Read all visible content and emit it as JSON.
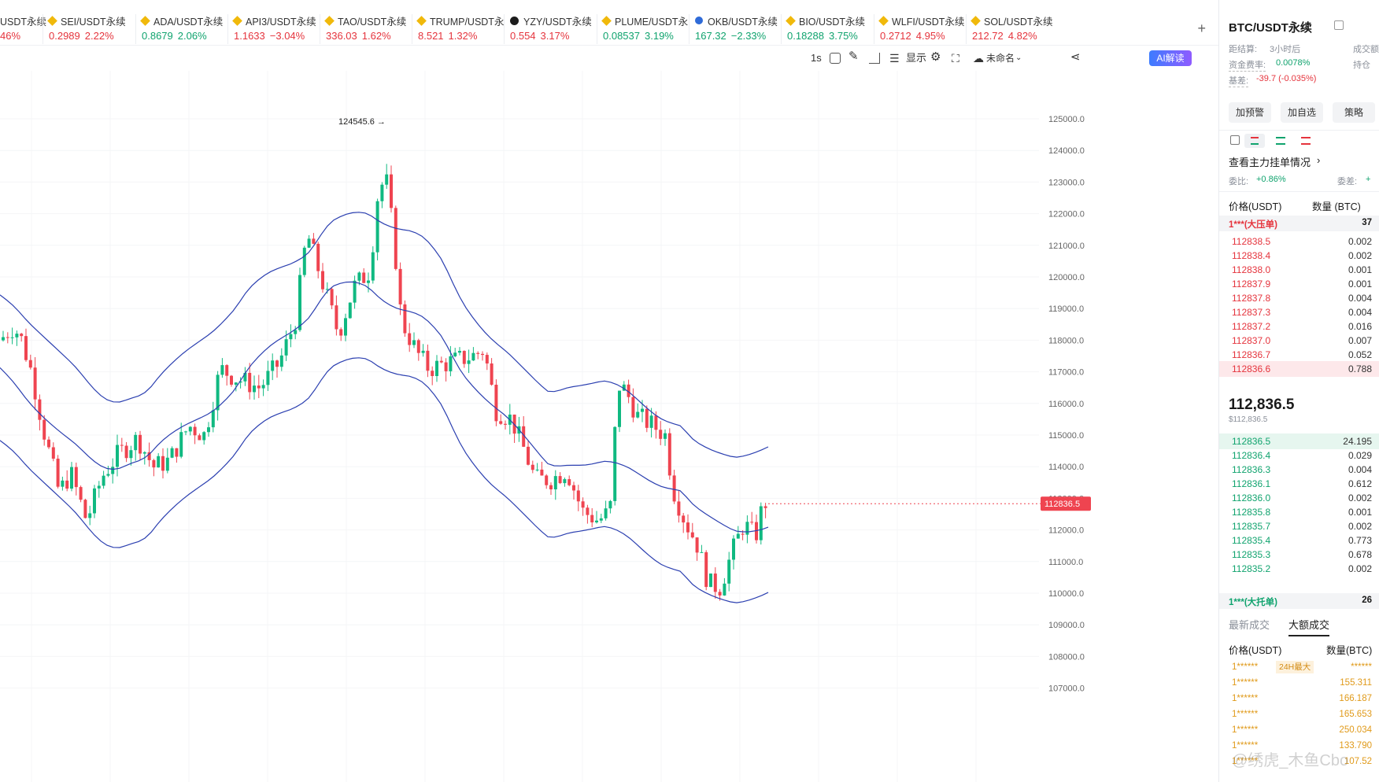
{
  "ticker": [
    {
      "name": "USDT永续",
      "price": "",
      "change": "46%",
      "dir": "down",
      "icon": "none"
    },
    {
      "name": "SEI/USDT永续",
      "price": "0.2989",
      "change": "2.22%",
      "dir": "down",
      "icon": "binance"
    },
    {
      "name": "ADA/USDT永续",
      "price": "0.8679",
      "change": "2.06%",
      "dir": "up",
      "icon": "binance"
    },
    {
      "name": "API3/USDT永续",
      "price": "1.1633",
      "change": "−3.04%",
      "dir": "down",
      "icon": "binance"
    },
    {
      "name": "TAO/USDT永续",
      "price": "336.03",
      "change": "1.62%",
      "dir": "down",
      "icon": "binance"
    },
    {
      "name": "TRUMP/USDT永",
      "price": "8.521",
      "change": "1.32%",
      "dir": "down",
      "icon": "binance"
    },
    {
      "name": "YZY/USDT永续",
      "price": "0.554",
      "change": "3.17%",
      "dir": "down",
      "icon": "dark"
    },
    {
      "name": "PLUME/USDT永",
      "price": "0.08537",
      "change": "3.19%",
      "dir": "up",
      "icon": "binance"
    },
    {
      "name": "OKB/USDT永续",
      "price": "167.32",
      "change": "−2.33%",
      "dir": "up",
      "icon": "blue"
    },
    {
      "name": "BIO/USDT永续",
      "price": "0.18288",
      "change": "3.75%",
      "dir": "up",
      "icon": "binance"
    },
    {
      "name": "WLFI/USDT永续",
      "price": "0.2712",
      "change": "4.95%",
      "dir": "down",
      "icon": "binance"
    },
    {
      "name": "SOL/USDT永续",
      "price": "212.72",
      "change": "4.82%",
      "dir": "down",
      "icon": "binance"
    }
  ],
  "toolbar": {
    "interval": "1s",
    "display_label": "显示",
    "layout_name": "未命名",
    "ai_label": "AI解读"
  },
  "chart": {
    "peak_label": "124545.6",
    "current_price_label": "112836.5",
    "y_ticks": [
      "125000.0",
      "124000.0",
      "123000.0",
      "122000.0",
      "121000.0",
      "120000.0",
      "119000.0",
      "118000.0",
      "117000.0",
      "116000.0",
      "115000.0",
      "114000.0",
      "113000.0",
      "112000.0",
      "111000.0",
      "110000.0",
      "109000.0",
      "108000.0",
      "107000.0"
    ],
    "colors": {
      "up": "#10b981",
      "down": "#ef4450",
      "band": "#2b3fb0"
    }
  },
  "panel": {
    "symbol": "BTC/USDT永续",
    "settle_label": "距结算:",
    "settle_value": "3小时后",
    "volume_label": "成交额",
    "funding_label": "资金费率:",
    "funding_value": "0.0078%",
    "position_label": "持仓",
    "basis_label": "基差:",
    "basis_value": "-39.7 (-0.035%)",
    "alert_button": "加预警",
    "watchlist_button": "加自选",
    "strategy_button": "策略",
    "main_orders_link": "查看主力挂单情况",
    "ratio_label": "委比:",
    "ratio_value": "+0.86%",
    "diff_label": "委差:",
    "diff_value": "+",
    "col_price": "价格(USDT)",
    "col_qty": "数量 (BTC)",
    "big_ask_label": "1***(大压单)",
    "big_ask_qty": "37",
    "asks": [
      {
        "p": "112838.5",
        "q": "0.002"
      },
      {
        "p": "112838.4",
        "q": "0.002"
      },
      {
        "p": "112838.0",
        "q": "0.001"
      },
      {
        "p": "112837.9",
        "q": "0.001"
      },
      {
        "p": "112837.8",
        "q": "0.004"
      },
      {
        "p": "112837.3",
        "q": "0.004"
      },
      {
        "p": "112837.2",
        "q": "0.016"
      },
      {
        "p": "112837.0",
        "q": "0.007"
      },
      {
        "p": "112836.7",
        "q": "0.052"
      },
      {
        "p": "112836.6",
        "q": "0.788"
      }
    ],
    "last_price": "112,836.5",
    "last_price_usd": "$112,836.5",
    "bids": [
      {
        "p": "112836.5",
        "q": "24.195"
      },
      {
        "p": "112836.4",
        "q": "0.029"
      },
      {
        "p": "112836.3",
        "q": "0.004"
      },
      {
        "p": "112836.1",
        "q": "0.612"
      },
      {
        "p": "112836.0",
        "q": "0.002"
      },
      {
        "p": "112835.8",
        "q": "0.001"
      },
      {
        "p": "112835.7",
        "q": "0.002"
      },
      {
        "p": "112835.4",
        "q": "0.773"
      },
      {
        "p": "112835.3",
        "q": "0.678"
      },
      {
        "p": "112835.2",
        "q": "0.002"
      }
    ],
    "big_bid_label": "1***(大托单)",
    "big_bid_qty": "26",
    "tab_latest": "最新成交",
    "tab_large": "大额成交",
    "trade_col_price": "价格(USDT)",
    "trade_col_qty": "数量(BTC)",
    "trades": [
      {
        "p": "1******",
        "tag": "24H最大",
        "q": "******"
      },
      {
        "p": "1******",
        "tag": "",
        "q": "155.311"
      },
      {
        "p": "1******",
        "tag": "",
        "q": "166.187"
      },
      {
        "p": "1******",
        "tag": "",
        "q": "165.653"
      },
      {
        "p": "1******",
        "tag": "",
        "q": "250.034"
      },
      {
        "p": "1******",
        "tag": "",
        "q": "133.790"
      },
      {
        "p": "1******",
        "tag": "",
        "q": "107.52"
      }
    ],
    "watermark": "@绣虎_木鱼Cbo"
  }
}
